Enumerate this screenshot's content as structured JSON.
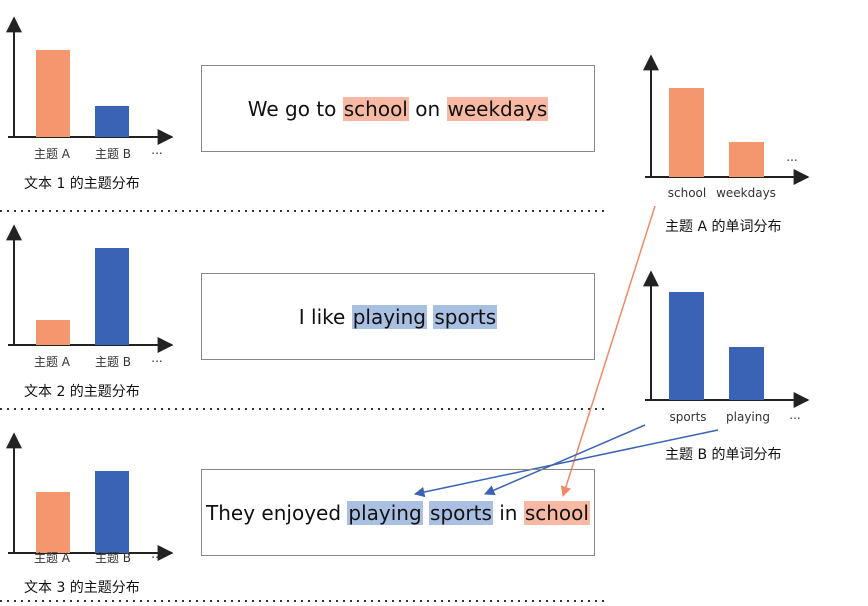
{
  "docs": [
    {
      "topic_labels": [
        "主题 A",
        "主题 B",
        "..."
      ],
      "caption": "文本 1 的主题分布",
      "tokens": [
        {
          "text": "We go to "
        },
        {
          "text": "school",
          "highlight": "#f7b9a3"
        },
        {
          "text": " on "
        },
        {
          "text": "weekdays",
          "highlight": "#f7b9a3"
        }
      ]
    },
    {
      "topic_labels": [
        "主题 A",
        "主题 B",
        "..."
      ],
      "caption": "文本 2 的主题分布",
      "tokens": [
        {
          "text": "I like "
        },
        {
          "text": "playing",
          "highlight": "#a9c0e2"
        },
        {
          "text": " "
        },
        {
          "text": "sports",
          "highlight": "#a9c0e2"
        }
      ]
    },
    {
      "topic_labels": [
        "主题 A",
        "主题 B",
        "..."
      ],
      "caption": "文本 3 的主题分布",
      "tokens": [
        {
          "text": "They enjoyed "
        },
        {
          "text": "playing",
          "highlight": "#a9c0e2"
        },
        {
          "text": " "
        },
        {
          "text": "sports",
          "highlight": "#a9c0e2"
        },
        {
          "text": " in "
        },
        {
          "text": "school",
          "highlight": "#f7b9a3"
        }
      ]
    }
  ],
  "topics": [
    {
      "words": [
        "school",
        "weekdays",
        "..."
      ],
      "caption": "主题 A 的单词分布"
    },
    {
      "words": [
        "sports",
        "playing",
        "..."
      ],
      "caption": "主题 B 的单词分布"
    }
  ]
}
